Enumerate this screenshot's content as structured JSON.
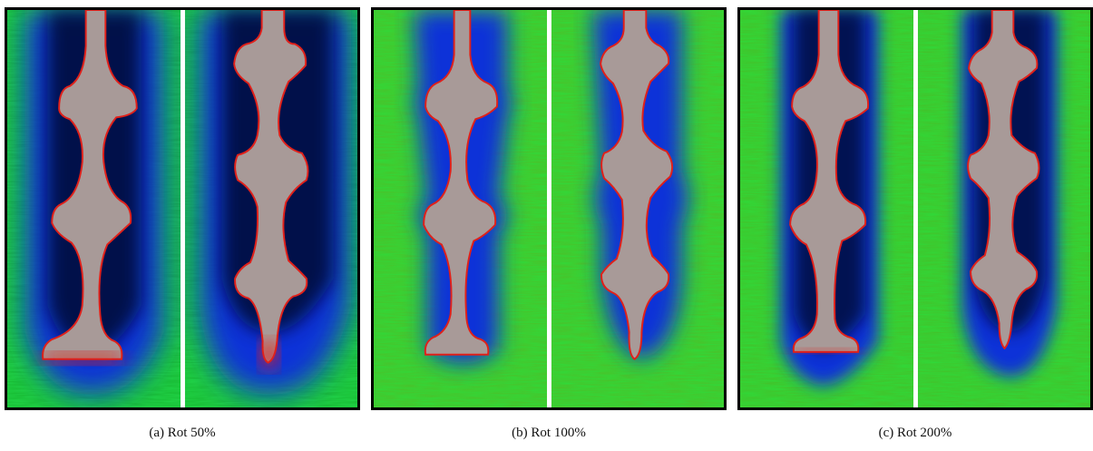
{
  "panels": [
    {
      "caption": "(a) Rot 50%"
    },
    {
      "caption": "(b) Rot 100%"
    },
    {
      "caption": "(c) Rot 200%"
    }
  ],
  "colors": {
    "background_green": "#22d84a",
    "halo_blue": "#1030d8",
    "core_dark": "#020a3a",
    "body_grey": "#a89a98",
    "edge_red": "#e0201a",
    "divider": "#ffffff"
  }
}
